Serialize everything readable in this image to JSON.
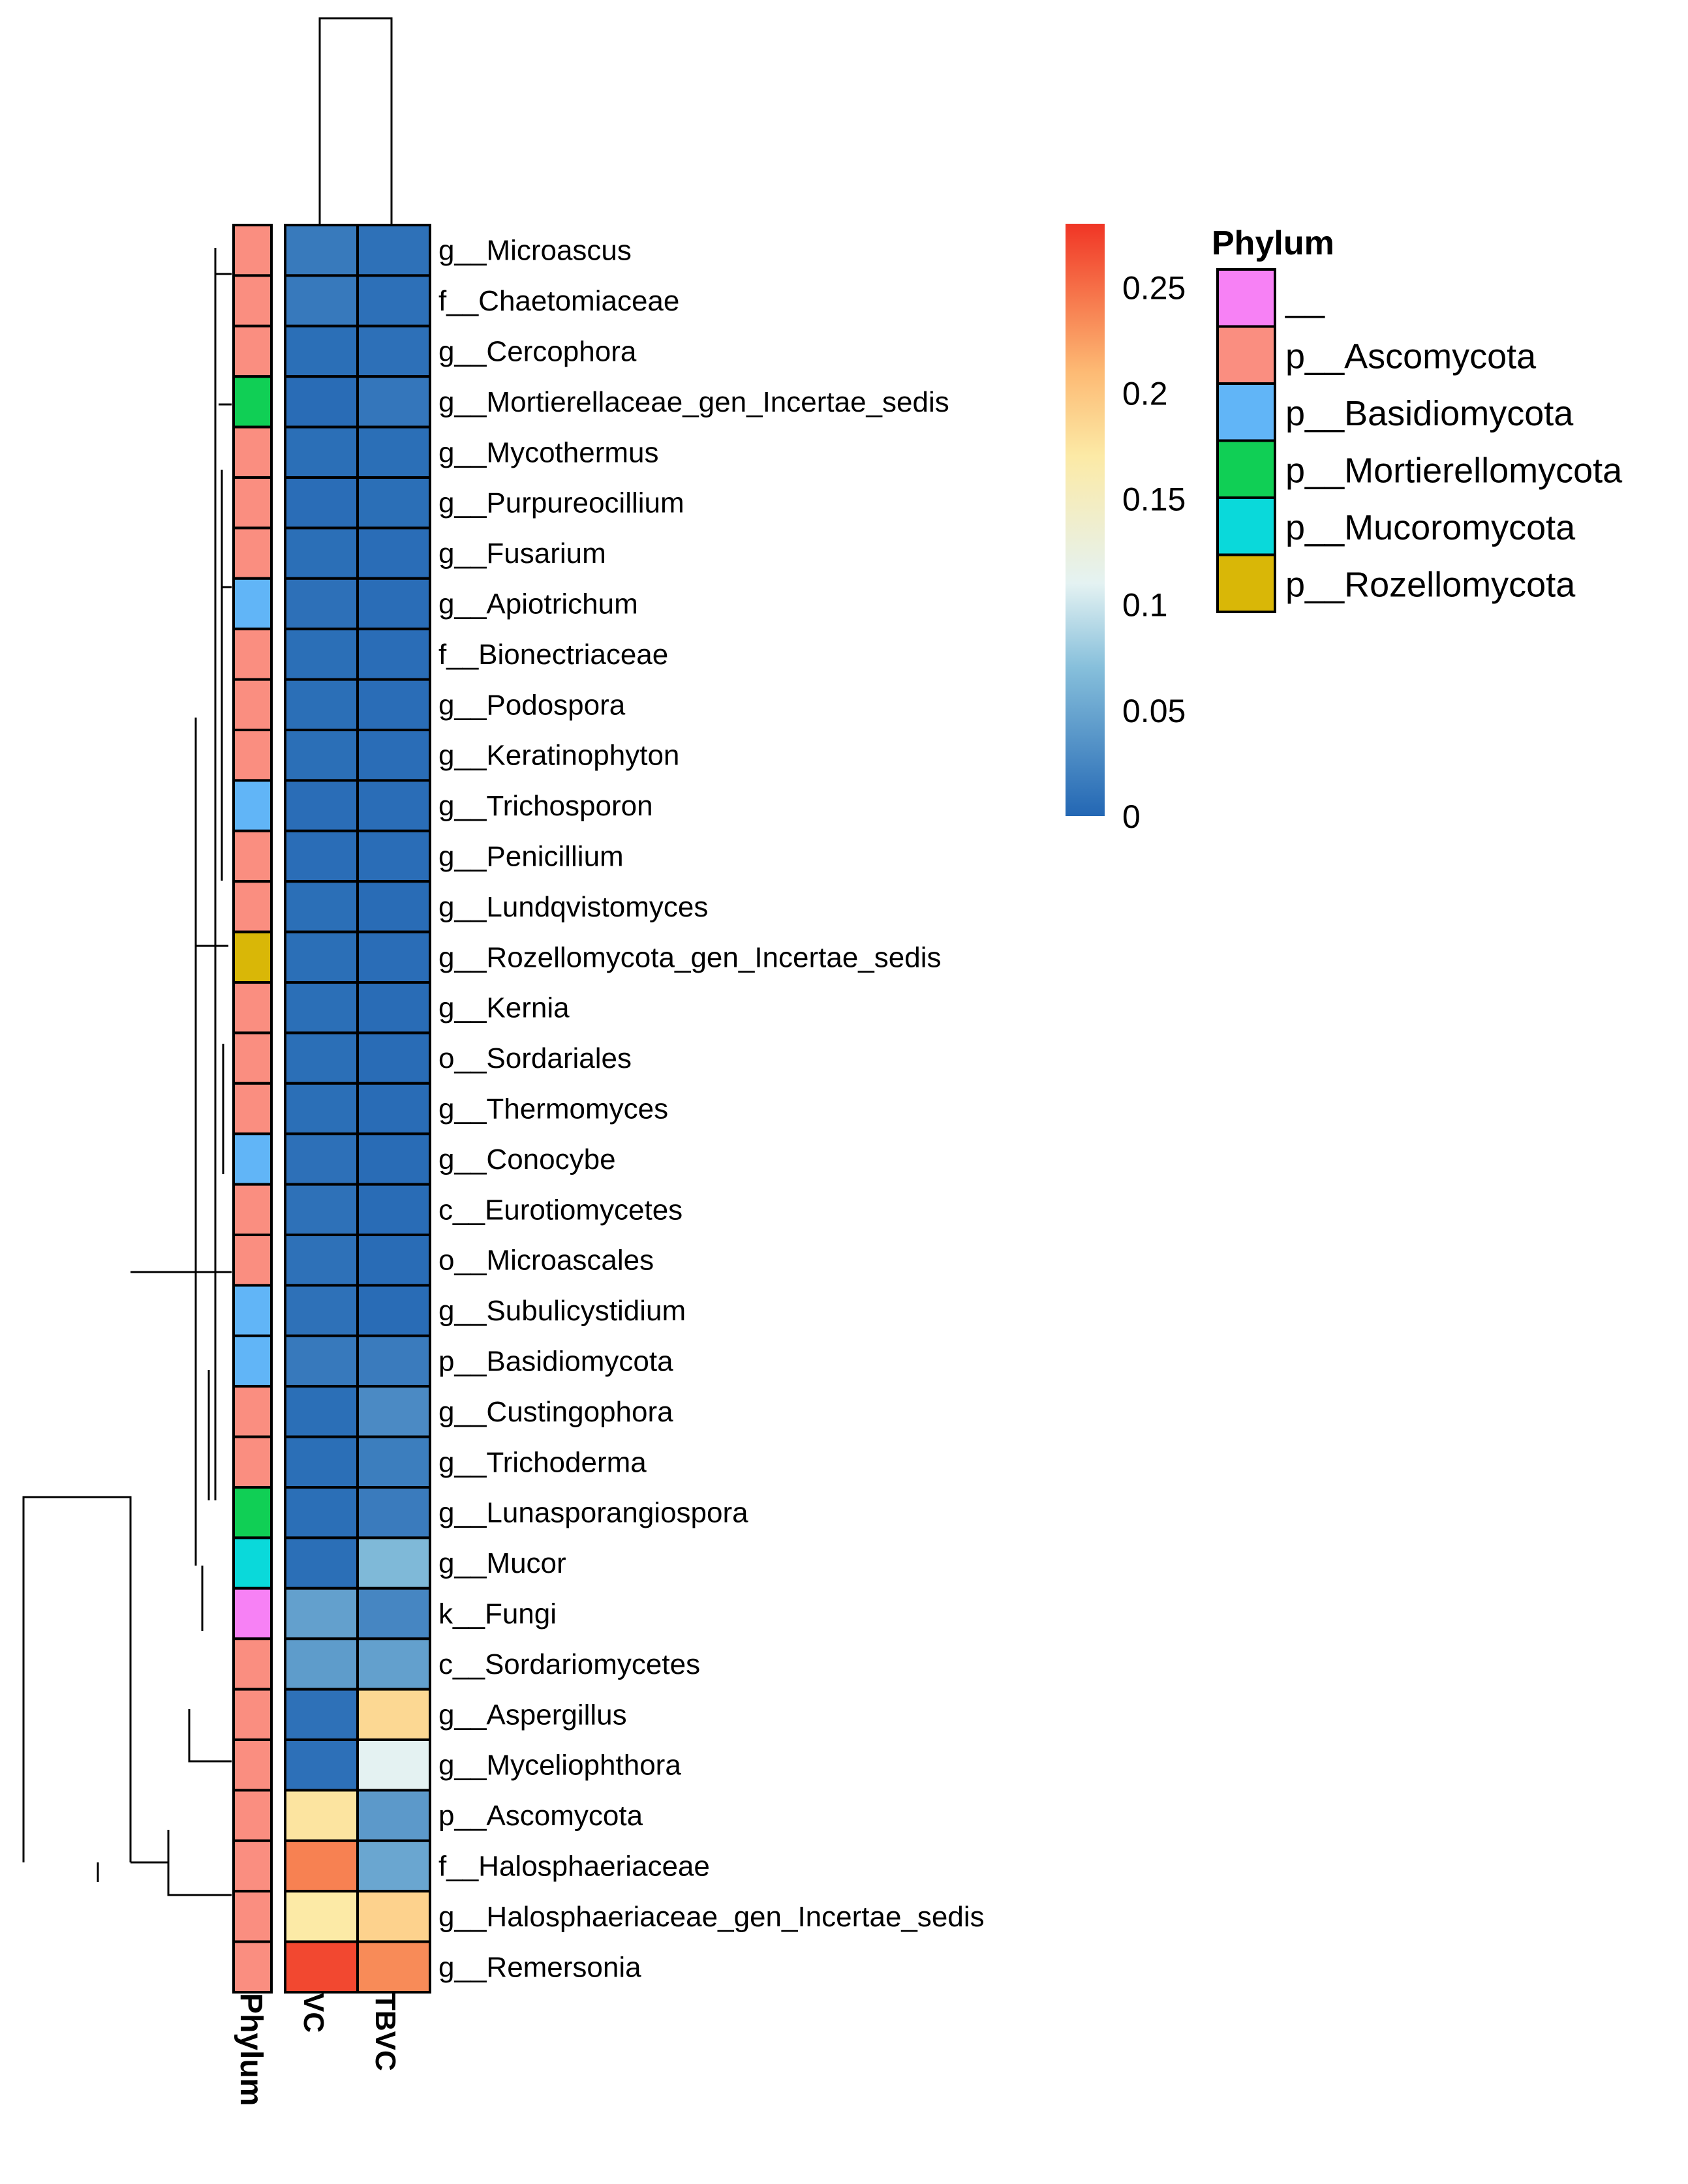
{
  "chart_data": {
    "type": "heatmap",
    "columns": [
      "VC",
      "TBVC"
    ],
    "annotation_title": "Phylum",
    "rows": [
      {
        "label": "g__Microascus",
        "phylum": "p__Ascomycota",
        "values": [
          0.015,
          0.008
        ]
      },
      {
        "label": "f__Chaetomiaceae",
        "phylum": "p__Ascomycota",
        "values": [
          0.014,
          0.007
        ]
      },
      {
        "label": "g__Cercophora",
        "phylum": "p__Ascomycota",
        "values": [
          0.006,
          0.007
        ]
      },
      {
        "label": "g__Mortierellaceae_gen_Incertae_sedis",
        "phylum": "p__Mortierellomycota",
        "values": [
          0.004,
          0.012
        ]
      },
      {
        "label": "g__Mycothermus",
        "phylum": "p__Ascomycota",
        "values": [
          0.006,
          0.006
        ]
      },
      {
        "label": "g__Purpureocillium",
        "phylum": "p__Ascomycota",
        "values": [
          0.005,
          0.006
        ]
      },
      {
        "label": "g__Fusarium",
        "phylum": "p__Ascomycota",
        "values": [
          0.006,
          0.005
        ]
      },
      {
        "label": "g__Apiotrichum",
        "phylum": "p__Basidiomycota",
        "values": [
          0.007,
          0.005
        ]
      },
      {
        "label": "f__Bionectriaceae",
        "phylum": "p__Ascomycota",
        "values": [
          0.006,
          0.005
        ]
      },
      {
        "label": "g__Podospora",
        "phylum": "p__Ascomycota",
        "values": [
          0.006,
          0.005
        ]
      },
      {
        "label": "g__Keratinophyton",
        "phylum": "p__Ascomycota",
        "values": [
          0.006,
          0.005
        ]
      },
      {
        "label": "g__Trichosporon",
        "phylum": "p__Basidiomycota",
        "values": [
          0.005,
          0.005
        ]
      },
      {
        "label": "g__Penicillium",
        "phylum": "p__Ascomycota",
        "values": [
          0.005,
          0.005
        ]
      },
      {
        "label": "g__Lundqvistomyces",
        "phylum": "p__Ascomycota",
        "values": [
          0.006,
          0.004
        ]
      },
      {
        "label": "g__Rozellomycota_gen_Incertae_sedis",
        "phylum": "p__Rozellomycota",
        "values": [
          0.006,
          0.005
        ]
      },
      {
        "label": "g__Kernia",
        "phylum": "p__Ascomycota",
        "values": [
          0.006,
          0.004
        ]
      },
      {
        "label": "o__Sordariales",
        "phylum": "p__Ascomycota",
        "values": [
          0.006,
          0.004
        ]
      },
      {
        "label": "g__Thermomyces",
        "phylum": "p__Ascomycota",
        "values": [
          0.006,
          0.004
        ]
      },
      {
        "label": "g__Conocybe",
        "phylum": "p__Basidiomycota",
        "values": [
          0.007,
          0.004
        ]
      },
      {
        "label": "c__Eurotiomycetes",
        "phylum": "p__Ascomycota",
        "values": [
          0.008,
          0.004
        ]
      },
      {
        "label": "o__Microascales",
        "phylum": "p__Ascomycota",
        "values": [
          0.008,
          0.004
        ]
      },
      {
        "label": "g__Subulicystidium",
        "phylum": "p__Basidiomycota",
        "values": [
          0.008,
          0.004
        ]
      },
      {
        "label": "p__Basidiomycota",
        "phylum": "p__Basidiomycota",
        "values": [
          0.014,
          0.016
        ]
      },
      {
        "label": "g__Custingophora",
        "phylum": "p__Ascomycota",
        "values": [
          0.006,
          0.028
        ]
      },
      {
        "label": "g__Trichoderma",
        "phylum": "p__Ascomycota",
        "values": [
          0.006,
          0.018
        ]
      },
      {
        "label": "g__Lunasporangiospora",
        "phylum": "p__Mortierellomycota",
        "values": [
          0.006,
          0.016
        ]
      },
      {
        "label": "g__Mucor",
        "phylum": "p__Mucoromycota",
        "values": [
          0.006,
          0.065
        ]
      },
      {
        "label": "k__Fungi",
        "phylum": "__",
        "values": [
          0.045,
          0.025
        ]
      },
      {
        "label": "c__Sordariomycetes",
        "phylum": "p__Ascomycota",
        "values": [
          0.042,
          0.045
        ]
      },
      {
        "label": "g__Aspergillus",
        "phylum": "p__Ascomycota",
        "values": [
          0.008,
          0.185
        ]
      },
      {
        "label": "g__Myceliophthora",
        "phylum": "p__Ascomycota",
        "values": [
          0.007,
          0.11
        ]
      },
      {
        "label": "p__Ascomycota",
        "phylum": "p__Ascomycota",
        "values": [
          0.175,
          0.04
        ]
      },
      {
        "label": "f__Halosphaeriaceae",
        "phylum": "p__Ascomycota",
        "values": [
          0.24,
          0.05
        ]
      },
      {
        "label": "g__Halosphaeriaceae_gen_Incertae_sedis",
        "phylum": "p__Ascomycota",
        "values": [
          0.17,
          0.19
        ]
      },
      {
        "label": "g__Remersonia",
        "phylum": "p__Ascomycota",
        "values": [
          0.27,
          0.235
        ]
      }
    ],
    "phylum_legend": {
      "title": "Phylum",
      "entries": [
        {
          "name": "__",
          "color": "#F781F5"
        },
        {
          "name": "p__Ascomycota",
          "color": "#FA8E80"
        },
        {
          "name": "p__Basidiomycota",
          "color": "#61B5F7"
        },
        {
          "name": "p__Mortierellomycota",
          "color": "#10CF55"
        },
        {
          "name": "p__Mucoromycota",
          "color": "#0AD9DA"
        },
        {
          "name": "p__Rozellomycota",
          "color": "#D9B707"
        }
      ]
    },
    "color_scale": {
      "min": 0,
      "max": 0.28,
      "ticks": [
        0,
        0.05,
        0.1,
        0.15,
        0.2,
        0.25
      ],
      "tick_labels": [
        "0",
        "0.05",
        "0.1",
        "0.15",
        "0.2",
        "0.25"
      ],
      "stops": [
        {
          "value": 0,
          "color": "#2367B4"
        },
        {
          "value": 0.07,
          "color": "#86BFDB"
        },
        {
          "value": 0.11,
          "color": "#E4F2F2"
        },
        {
          "value": 0.17,
          "color": "#FCEAA6"
        },
        {
          "value": 0.21,
          "color": "#FDBA74"
        },
        {
          "value": 0.28,
          "color": "#F03525"
        }
      ]
    }
  }
}
